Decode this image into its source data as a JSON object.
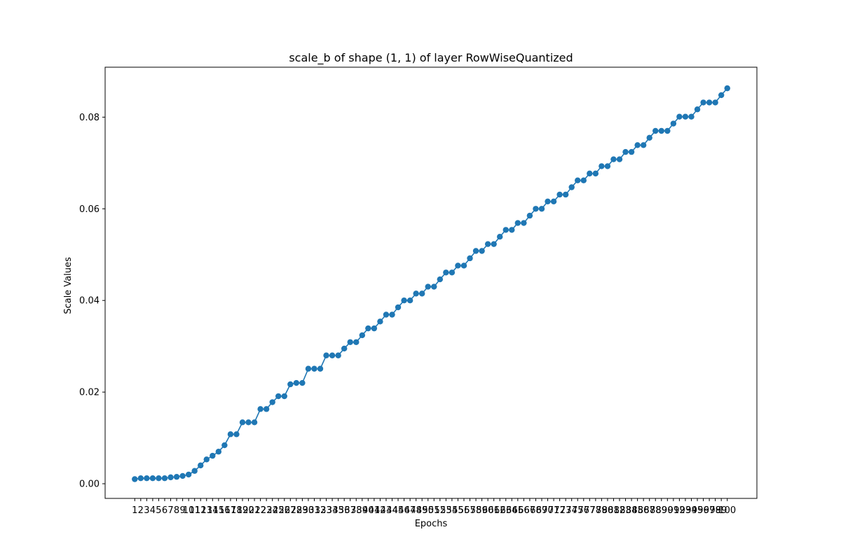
{
  "chart_data": {
    "type": "line",
    "title": "scale_b of shape (1, 1) of layer RowWiseQuantized",
    "xlabel": "Epochs",
    "ylabel": "Scale Values",
    "x": [
      1,
      2,
      3,
      4,
      5,
      6,
      7,
      8,
      9,
      10,
      11,
      12,
      13,
      14,
      15,
      16,
      17,
      18,
      19,
      20,
      21,
      22,
      23,
      24,
      25,
      26,
      27,
      28,
      29,
      30,
      31,
      32,
      33,
      34,
      35,
      36,
      37,
      38,
      39,
      40,
      41,
      42,
      43,
      44,
      45,
      46,
      47,
      48,
      49,
      50,
      51,
      52,
      53,
      54,
      55,
      56,
      57,
      58,
      59,
      60,
      61,
      62,
      63,
      64,
      65,
      66,
      67,
      68,
      69,
      70,
      71,
      72,
      73,
      74,
      75,
      76,
      77,
      78,
      79,
      80,
      81,
      82,
      83,
      84,
      85,
      86,
      87,
      88,
      89,
      90,
      91,
      92,
      93,
      94,
      95,
      96,
      97,
      98,
      99,
      100
    ],
    "series": [
      {
        "name": "",
        "color": "#1f77b4",
        "marker": "circle",
        "values": [
          0.001,
          0.0012,
          0.0012,
          0.0012,
          0.0012,
          0.0012,
          0.0014,
          0.0015,
          0.0017,
          0.002,
          0.0028,
          0.004,
          0.0053,
          0.0061,
          0.007,
          0.0084,
          0.0108,
          0.0108,
          0.0134,
          0.0134,
          0.0134,
          0.0163,
          0.0163,
          0.0178,
          0.0191,
          0.0191,
          0.0217,
          0.022,
          0.022,
          0.0251,
          0.0251,
          0.0251,
          0.028,
          0.028,
          0.028,
          0.0295,
          0.0309,
          0.0309,
          0.0324,
          0.0339,
          0.0339,
          0.0354,
          0.0369,
          0.0369,
          0.0385,
          0.04,
          0.04,
          0.0415,
          0.0415,
          0.043,
          0.043,
          0.0446,
          0.0461,
          0.0461,
          0.0476,
          0.0476,
          0.0492,
          0.0508,
          0.0508,
          0.0523,
          0.0523,
          0.0539,
          0.0554,
          0.0554,
          0.0569,
          0.0569,
          0.0585,
          0.06,
          0.06,
          0.0616,
          0.0616,
          0.0631,
          0.0631,
          0.0647,
          0.0662,
          0.0662,
          0.0677,
          0.0677,
          0.0693,
          0.0693,
          0.0708,
          0.0708,
          0.0724,
          0.0724,
          0.0739,
          0.0739,
          0.0755,
          0.077,
          0.077,
          0.077,
          0.0786,
          0.0801,
          0.0801,
          0.0801,
          0.0817,
          0.0832,
          0.0832,
          0.0832,
          0.0848,
          0.0863
        ]
      }
    ],
    "xticks": [
      "1",
      "2",
      "3",
      "4",
      "5",
      "6",
      "7",
      "8",
      "9",
      "10",
      "11",
      "12",
      "13",
      "14",
      "15",
      "16",
      "17",
      "18",
      "19",
      "20",
      "21",
      "22",
      "23",
      "24",
      "25",
      "26",
      "27",
      "28",
      "29",
      "30",
      "31",
      "32",
      "33",
      "34",
      "35",
      "36",
      "37",
      "38",
      "39",
      "40",
      "41",
      "42",
      "43",
      "44",
      "45",
      "46",
      "47",
      "48",
      "49",
      "50",
      "51",
      "52",
      "53",
      "54",
      "55",
      "56",
      "57",
      "58",
      "59",
      "60",
      "61",
      "62",
      "63",
      "64",
      "65",
      "66",
      "67",
      "68",
      "69",
      "70",
      "71",
      "72",
      "73",
      "74",
      "75",
      "76",
      "77",
      "78",
      "79",
      "80",
      "81",
      "82",
      "83",
      "84",
      "85",
      "86",
      "87",
      "88",
      "89",
      "90",
      "91",
      "92",
      "93",
      "94",
      "95",
      "96",
      "97",
      "98",
      "99",
      "100"
    ],
    "yticks": [
      "0.00",
      "0.02",
      "0.04",
      "0.06",
      "0.08"
    ],
    "ytick_values": [
      0.0,
      0.02,
      0.04,
      0.06,
      0.08
    ],
    "ylim": [
      -0.0032,
      0.0909
    ],
    "xlim": [
      -3.95,
      104.95
    ],
    "grid": false,
    "legend": "none"
  }
}
